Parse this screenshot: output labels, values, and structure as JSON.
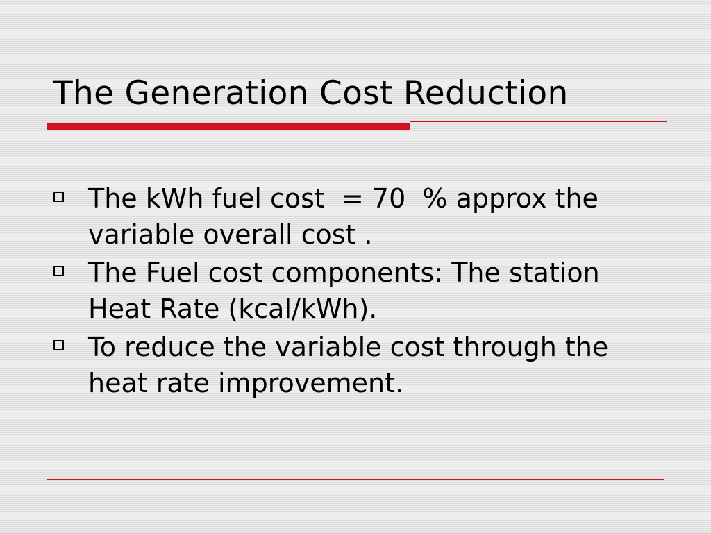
{
  "slide": {
    "title": "The Generation Cost Reduction",
    "bullets": [
      {
        "text": "The kWh fuel cost  = 70  % approx the variable overall cost ."
      },
      {
        "text": "The Fuel cost components: The station Heat Rate (kcal/kWh)."
      },
      {
        "text": "To reduce the variable cost through the heat rate improvement."
      }
    ]
  },
  "colors": {
    "accent": "#d4111e",
    "text": "#000000",
    "background": "#e6e6e6"
  },
  "icons": {
    "bullet": "hollow-square-bullet-icon"
  }
}
